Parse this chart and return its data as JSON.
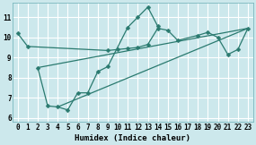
{
  "bg_color": "#cce8ec",
  "grid_color": "#ffffff",
  "line_color": "#2a7a6f",
  "xlabel": "Humidex (Indice chaleur)",
  "xlim": [
    -0.5,
    23.5
  ],
  "ylim": [
    5.8,
    11.7
  ],
  "yticks": [
    6,
    7,
    8,
    9,
    10,
    11
  ],
  "xticks": [
    0,
    1,
    2,
    3,
    4,
    5,
    6,
    7,
    8,
    9,
    10,
    11,
    12,
    13,
    14,
    15,
    16,
    17,
    18,
    19,
    20,
    21,
    22,
    23
  ],
  "line1_x": [
    0,
    1,
    9,
    10,
    11,
    12,
    13,
    14,
    15,
    16,
    18,
    19,
    20,
    21,
    22,
    23
  ],
  "line1_y": [
    10.2,
    9.55,
    9.35,
    9.4,
    9.45,
    9.5,
    9.65,
    10.45,
    10.35,
    9.85,
    10.1,
    10.25,
    10.0,
    9.15,
    9.4,
    10.45
  ],
  "line2_x": [
    2,
    3,
    4,
    5,
    6,
    7,
    8,
    9,
    11,
    12,
    13,
    14
  ],
  "line2_y": [
    8.5,
    6.6,
    6.55,
    6.4,
    7.25,
    7.25,
    8.3,
    8.55,
    10.5,
    11.0,
    11.5,
    10.55
  ],
  "trend1_x": [
    2,
    23
  ],
  "trend1_y": [
    8.5,
    10.45
  ],
  "trend2_x": [
    4,
    23
  ],
  "trend2_y": [
    6.55,
    10.45
  ],
  "markersize": 2.5,
  "linewidth": 0.9,
  "xlabel_fontsize": 6.5
}
